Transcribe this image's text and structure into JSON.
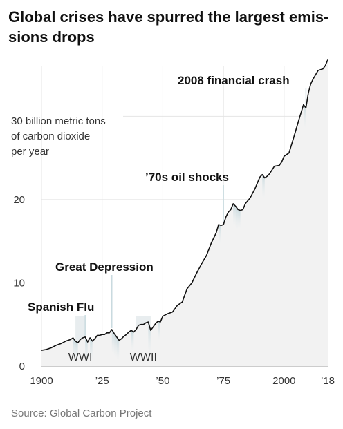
{
  "title": "Global crises have spurred the largest emis-sions drops",
  "source": "Source: Global Carbon Project",
  "chart_data": {
    "type": "area",
    "title": "Global crises have spurred the largest emissions drops",
    "ylabel": "30 billion metric tons of carbon dioxide per year",
    "ylabel_lines": [
      "30 billion metric tons",
      "of carbon dioxide",
      "per year"
    ],
    "xlim": [
      1900,
      2018
    ],
    "ylim": [
      0,
      36
    ],
    "grid": true,
    "y_ticks": [
      0,
      10,
      20
    ],
    "y_tick_labels": [
      "0",
      "10",
      "20"
    ],
    "x_ticks": [
      1900,
      1925,
      1950,
      1975,
      2000,
      2018
    ],
    "x_tick_labels": [
      "1900",
      "’25",
      "’50",
      "’75",
      "2000",
      "’18"
    ],
    "x": [
      1900,
      1902,
      1904,
      1906,
      1908,
      1910,
      1912,
      1913,
      1914,
      1915,
      1916,
      1917,
      1918,
      1919,
      1920,
      1921,
      1922,
      1923,
      1924,
      1925,
      1926,
      1927,
      1928,
      1929,
      1930,
      1931,
      1932,
      1933,
      1934,
      1935,
      1936,
      1937,
      1938,
      1939,
      1940,
      1941,
      1942,
      1943,
      1944,
      1945,
      1946,
      1947,
      1948,
      1949,
      1950,
      1952,
      1954,
      1956,
      1958,
      1960,
      1962,
      1964,
      1966,
      1968,
      1970,
      1972,
      1973,
      1974,
      1975,
      1976,
      1977,
      1978,
      1979,
      1980,
      1981,
      1982,
      1983,
      1984,
      1986,
      1988,
      1990,
      1991,
      1992,
      1993,
      1994,
      1996,
      1998,
      1999,
      2000,
      2002,
      2004,
      2006,
      2008,
      2009,
      2010,
      2011,
      2012,
      2014,
      2016,
      2017,
      2018
    ],
    "y": [
      1.9,
      2.0,
      2.2,
      2.5,
      2.7,
      3.0,
      3.2,
      3.4,
      3.0,
      2.8,
      3.2,
      3.4,
      3.5,
      2.9,
      3.4,
      3.0,
      3.3,
      3.7,
      3.7,
      3.8,
      3.8,
      4.0,
      4.0,
      4.4,
      3.9,
      3.5,
      3.1,
      3.3,
      3.6,
      3.8,
      4.1,
      4.3,
      4.1,
      4.4,
      4.9,
      5.0,
      5.0,
      5.2,
      5.3,
      4.3,
      4.7,
      5.1,
      5.4,
      5.3,
      6.0,
      6.3,
      6.5,
      7.3,
      7.7,
      9.3,
      10.0,
      11.2,
      12.3,
      13.3,
      14.8,
      16.0,
      17.0,
      16.9,
      17.0,
      17.9,
      18.5,
      18.8,
      19.5,
      19.2,
      18.8,
      18.7,
      18.8,
      19.5,
      20.2,
      21.3,
      22.7,
      23.0,
      22.6,
      22.8,
      23.1,
      24.0,
      24.1,
      24.5,
      25.2,
      25.6,
      27.5,
      29.5,
      31.4,
      31.0,
      32.8,
      33.9,
      34.5,
      35.5,
      35.7,
      36.1,
      36.8
    ],
    "annotations": [
      {
        "label": "Spanish Flu",
        "x": 1918
      },
      {
        "label": "Great Depression",
        "x": 1929
      },
      {
        "label": "’70s oil shocks",
        "x": 1975
      },
      {
        "label": "2008 financial crash",
        "x": 2009
      }
    ],
    "eras": [
      {
        "label": "WWI",
        "start": 1914,
        "end": 1918
      },
      {
        "label": "WWII",
        "start": 1939,
        "end": 1945
      }
    ]
  }
}
